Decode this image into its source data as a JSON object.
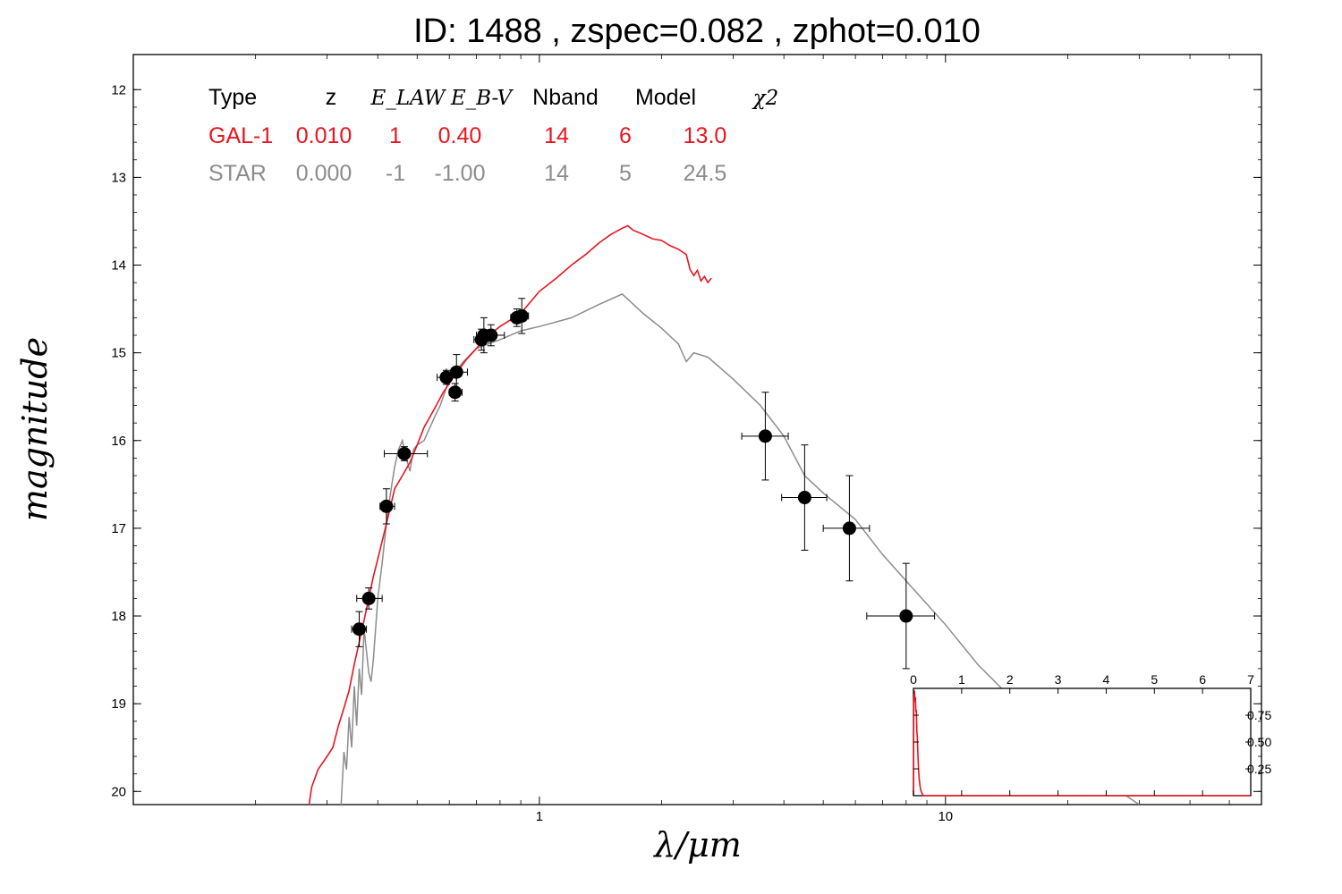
{
  "title": "ID:  1488  , zspec=0.082 , zphot=0.010",
  "chart_data": {
    "type": "scatter",
    "xlabel": "λ/μm",
    "ylabel": "magnitude",
    "x_scale": "log",
    "xlim": [
      0.1,
      60
    ],
    "ylim": [
      20.15,
      11.6
    ],
    "y_inverted": true,
    "y_ticks": [
      12,
      13,
      14,
      15,
      16,
      17,
      18,
      19,
      20
    ],
    "x_ticks": [
      1,
      10
    ],
    "x_tick_labels": [
      "1",
      "10"
    ],
    "colors": {
      "galaxy": "#e8141e",
      "star": "#8c8c8c",
      "points": "#000000"
    },
    "table": {
      "headers": [
        "Type",
        "z",
        "E_LAW",
        "E_B-V",
        "Nband",
        "Model",
        "χ2"
      ],
      "rows": [
        {
          "color": "#e8141e",
          "cells": [
            "GAL-1",
            "0.010",
            "1",
            "0.40",
            "14",
            "6",
            "13.0"
          ]
        },
        {
          "color": "#8c8c8c",
          "cells": [
            "STAR",
            "0.000",
            "-1",
            "-1.00",
            "14",
            "5",
            "24.5"
          ]
        }
      ]
    },
    "points": [
      {
        "x": 0.36,
        "y": 18.15,
        "xerr": [
          0.345,
          0.375
        ],
        "yerr": 0.2
      },
      {
        "x": 0.38,
        "y": 17.8,
        "xerr": [
          0.355,
          0.41
        ],
        "yerr": 0.12
      },
      {
        "x": 0.42,
        "y": 16.75,
        "xerr": [
          0.405,
          0.44
        ],
        "yerr": 0.2
      },
      {
        "x": 0.465,
        "y": 16.15,
        "xerr": [
          0.415,
          0.53
        ],
        "yerr": 0.08
      },
      {
        "x": 0.59,
        "y": 15.28,
        "xerr": [
          0.56,
          0.625
        ],
        "yerr": 0.08
      },
      {
        "x": 0.625,
        "y": 15.22,
        "xerr": [
          0.59,
          0.665
        ],
        "yerr": 0.2
      },
      {
        "x": 0.62,
        "y": 15.45,
        "xerr": [
          0.6,
          0.645
        ],
        "yerr": 0.1
      },
      {
        "x": 0.72,
        "y": 14.85,
        "xerr": [
          0.69,
          0.75
        ],
        "yerr": 0.12
      },
      {
        "x": 0.73,
        "y": 14.8,
        "xerr": [
          0.71,
          0.78
        ],
        "yerr": 0.2
      },
      {
        "x": 0.76,
        "y": 14.8,
        "xerr": [
          0.7,
          0.82
        ],
        "yerr": 0.12
      },
      {
        "x": 0.88,
        "y": 14.6,
        "xerr": [
          0.85,
          0.91
        ],
        "yerr": 0.1
      },
      {
        "x": 0.905,
        "y": 14.58,
        "xerr": [
          0.87,
          0.94
        ],
        "yerr": 0.2
      },
      {
        "x": 3.6,
        "y": 15.95,
        "xerr": [
          3.15,
          4.1
        ],
        "yerr": 0.5
      },
      {
        "x": 4.5,
        "y": 16.65,
        "xerr": [
          3.95,
          5.1
        ],
        "yerr": 0.6
      },
      {
        "x": 5.8,
        "y": 17.0,
        "xerr": [
          5.0,
          6.5
        ],
        "yerr": 0.6
      },
      {
        "x": 8.0,
        "y": 18.0,
        "xerr": [
          6.4,
          9.4
        ],
        "yerr": 0.6
      }
    ],
    "galaxy_model": [
      [
        0.271,
        20.15
      ],
      [
        0.275,
        19.95
      ],
      [
        0.285,
        19.75
      ],
      [
        0.29,
        19.7
      ],
      [
        0.3,
        19.6
      ],
      [
        0.31,
        19.5
      ],
      [
        0.32,
        19.25
      ],
      [
        0.33,
        19.05
      ],
      [
        0.34,
        18.85
      ],
      [
        0.35,
        18.55
      ],
      [
        0.36,
        18.3
      ],
      [
        0.37,
        18.05
      ],
      [
        0.38,
        17.8
      ],
      [
        0.39,
        17.55
      ],
      [
        0.4,
        17.35
      ],
      [
        0.41,
        17.15
      ],
      [
        0.42,
        16.95
      ],
      [
        0.43,
        16.75
      ],
      [
        0.44,
        16.55
      ],
      [
        0.46,
        16.4
      ],
      [
        0.48,
        16.25
      ],
      [
        0.5,
        16.05
      ],
      [
        0.52,
        15.85
      ],
      [
        0.55,
        15.65
      ],
      [
        0.58,
        15.45
      ],
      [
        0.62,
        15.25
      ],
      [
        0.66,
        15.08
      ],
      [
        0.7,
        14.95
      ],
      [
        0.75,
        14.8
      ],
      [
        0.8,
        14.7
      ],
      [
        0.9,
        14.55
      ],
      [
        1.0,
        14.3
      ],
      [
        1.1,
        14.15
      ],
      [
        1.2,
        14.0
      ],
      [
        1.3,
        13.88
      ],
      [
        1.4,
        13.75
      ],
      [
        1.5,
        13.65
      ],
      [
        1.6,
        13.58
      ],
      [
        1.65,
        13.55
      ],
      [
        1.7,
        13.6
      ],
      [
        1.8,
        13.65
      ],
      [
        1.9,
        13.7
      ],
      [
        2.0,
        13.72
      ],
      [
        2.1,
        13.78
      ],
      [
        2.2,
        13.82
      ],
      [
        2.3,
        13.88
      ],
      [
        2.35,
        14.05
      ],
      [
        2.4,
        14.12
      ],
      [
        2.45,
        14.06
      ],
      [
        2.5,
        14.18
      ],
      [
        2.55,
        14.13
      ],
      [
        2.6,
        14.2
      ],
      [
        2.65,
        14.15
      ]
    ],
    "star_model": [
      [
        0.325,
        20.15
      ],
      [
        0.33,
        19.55
      ],
      [
        0.335,
        19.75
      ],
      [
        0.34,
        19.15
      ],
      [
        0.345,
        19.5
      ],
      [
        0.35,
        18.8
      ],
      [
        0.355,
        19.25
      ],
      [
        0.36,
        18.6
      ],
      [
        0.365,
        18.9
      ],
      [
        0.37,
        18.15
      ],
      [
        0.375,
        18.4
      ],
      [
        0.38,
        18.65
      ],
      [
        0.385,
        18.75
      ],
      [
        0.39,
        18.5
      ],
      [
        0.4,
        17.8
      ],
      [
        0.41,
        17.4
      ],
      [
        0.42,
        16.95
      ],
      [
        0.43,
        16.6
      ],
      [
        0.44,
        16.3
      ],
      [
        0.45,
        16.1
      ],
      [
        0.46,
        16.0
      ],
      [
        0.47,
        16.2
      ],
      [
        0.48,
        16.35
      ],
      [
        0.49,
        16.1
      ],
      [
        0.5,
        16.05
      ],
      [
        0.52,
        16.0
      ],
      [
        0.55,
        15.75
      ],
      [
        0.57,
        15.6
      ],
      [
        0.6,
        15.3
      ],
      [
        0.65,
        15.1
      ],
      [
        0.7,
        14.95
      ],
      [
        0.8,
        14.85
      ],
      [
        0.9,
        14.75
      ],
      [
        1.0,
        14.7
      ],
      [
        1.2,
        14.6
      ],
      [
        1.4,
        14.45
      ],
      [
        1.6,
        14.33
      ],
      [
        1.8,
        14.55
      ],
      [
        2.0,
        14.72
      ],
      [
        2.2,
        14.9
      ],
      [
        2.3,
        15.1
      ],
      [
        2.4,
        15.0
      ],
      [
        2.6,
        15.05
      ],
      [
        3.0,
        15.3
      ],
      [
        3.5,
        15.6
      ],
      [
        4.0,
        15.95
      ],
      [
        4.5,
        16.4
      ],
      [
        5.0,
        16.6
      ],
      [
        6.0,
        16.9
      ],
      [
        7.0,
        17.3
      ],
      [
        8.0,
        17.6
      ],
      [
        10.0,
        18.1
      ],
      [
        12.0,
        18.55
      ],
      [
        15.0,
        19.0
      ],
      [
        20.0,
        19.6
      ],
      [
        30.0,
        20.15
      ]
    ],
    "inset": {
      "xlim": [
        0,
        7
      ],
      "x_ticks": [
        0,
        1,
        2,
        3,
        4,
        5,
        6,
        7
      ],
      "y_ticks": [
        0.25,
        0.5,
        0.75
      ],
      "y_tick_labels": [
        "0.25",
        "0.50",
        "0.75"
      ],
      "ylim": [
        0,
        1.0
      ],
      "curve": [
        [
          0.0,
          0.0
        ],
        [
          0.005,
          0.85
        ],
        [
          0.01,
          0.9
        ],
        [
          0.02,
          0.98
        ],
        [
          0.03,
          0.88
        ],
        [
          0.04,
          0.92
        ],
        [
          0.05,
          0.78
        ],
        [
          0.06,
          0.8
        ],
        [
          0.07,
          0.6
        ],
        [
          0.08,
          0.55
        ],
        [
          0.09,
          0.42
        ],
        [
          0.1,
          0.3
        ],
        [
          0.11,
          0.22
        ],
        [
          0.12,
          0.15
        ],
        [
          0.14,
          0.08
        ],
        [
          0.16,
          0.04
        ],
        [
          0.2,
          0.0
        ],
        [
          7.0,
          0.0
        ]
      ]
    }
  }
}
